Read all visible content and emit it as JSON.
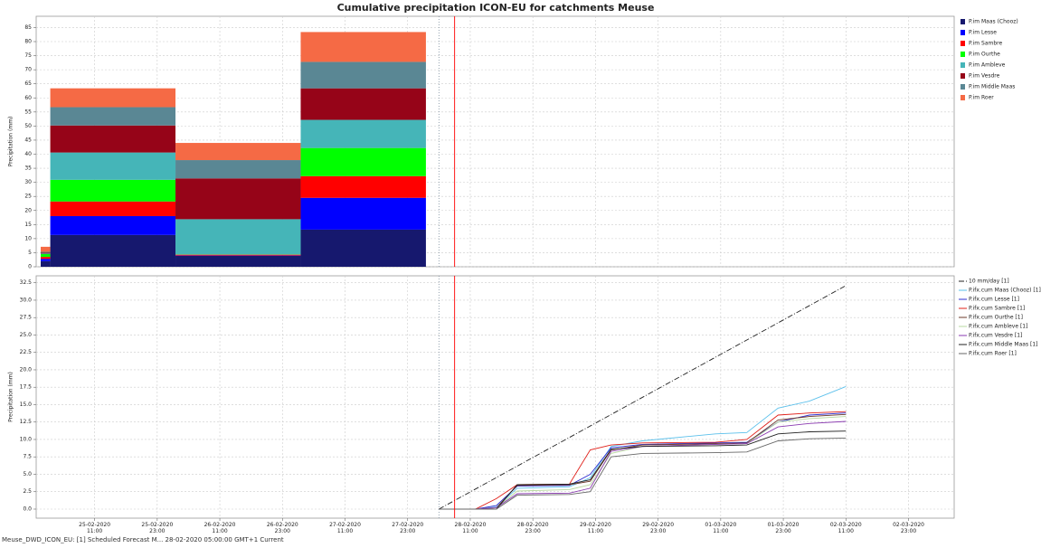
{
  "chart_data": [
    {
      "type": "histogram",
      "stacked": true,
      "title": "Cumulative precipitation ICON-EU for catchments Meuse",
      "y_label": "Precipitation (mm)",
      "xlim": [
        "2020-02-24T23:48",
        "2020-03-03T07:45"
      ],
      "ylim": [
        0,
        89
      ],
      "yticks": [
        0,
        5,
        10,
        15,
        20,
        25,
        30,
        35,
        40,
        45,
        50,
        55,
        60,
        65,
        70,
        75,
        80,
        85
      ],
      "grid": true,
      "bins": [
        "2020-02-25T00:40",
        "2020-02-25T02:30",
        "2020-02-26T02:30",
        "2020-02-27T02:30",
        "2020-02-28T02:30"
      ],
      "vlines": [
        {
          "x": "2020-02-28T05:00",
          "color": "#8a9aa8",
          "dash": "1 2"
        },
        {
          "x": "2020-02-28T08:00",
          "color": "#ff0000",
          "dash": ""
        }
      ],
      "series": [
        {
          "name": "P.im Maas (Chooz)",
          "color": "#16186e",
          "values": [
            2.0,
            11.3,
            3.9,
            13.2
          ]
        },
        {
          "name": "P.im Lesse",
          "color": "#0000ff",
          "values": [
            0.8,
            6.7,
            0.1,
            11.3
          ]
        },
        {
          "name": "P.im Sambre",
          "color": "#ff0000",
          "values": [
            0.7,
            5.2,
            0.3,
            7.7
          ]
        },
        {
          "name": "P.im Ourthe",
          "color": "#00ff00",
          "values": [
            1.0,
            7.7,
            0.1,
            10.0
          ]
        },
        {
          "name": "P.im Ambleve",
          "color": "#45b5b8",
          "values": [
            0.2,
            9.7,
            12.5,
            10.0
          ]
        },
        {
          "name": "P.im Vesdre",
          "color": "#960418",
          "values": [
            0.3,
            9.6,
            14.5,
            11.2
          ]
        },
        {
          "name": "P.im Middle Maas",
          "color": "#5a8794",
          "values": [
            0.3,
            6.5,
            6.5,
            9.4
          ]
        },
        {
          "name": "P.im Roer",
          "color": "#f56a45",
          "values": [
            1.8,
            6.7,
            6.1,
            10.6
          ]
        }
      ]
    },
    {
      "type": "line",
      "y_label": "Precipitation (mm)",
      "xlim": [
        "2020-02-24T23:48",
        "2020-03-03T07:45"
      ],
      "ylim": [
        -1.3,
        33.5
      ],
      "yticks": [
        {
          "value": 0,
          "label": "0.0"
        },
        {
          "value": 2.5,
          "label": "2.5"
        },
        {
          "value": 5,
          "label": "5.0"
        },
        {
          "value": 7.5,
          "label": "7.5"
        },
        {
          "value": 10,
          "label": "10.0"
        },
        {
          "value": 12.5,
          "label": "12.5"
        },
        {
          "value": 15,
          "label": "15.0"
        },
        {
          "value": 17.5,
          "label": "17.5"
        },
        {
          "value": 20,
          "label": "20.0"
        },
        {
          "value": 22.5,
          "label": "22.5"
        },
        {
          "value": 25,
          "label": "25.0"
        },
        {
          "value": 27.5,
          "label": "27.5"
        },
        {
          "value": 30,
          "label": "30.0"
        },
        {
          "value": 32.5,
          "label": "32.5"
        }
      ],
      "xticks": [
        {
          "value": "2020-02-25T11:00",
          "label": "25-02-2020\n11:00"
        },
        {
          "value": "2020-02-25T23:00",
          "label": "25-02-2020\n23:00"
        },
        {
          "value": "2020-02-26T11:00",
          "label": "26-02-2020\n11:00"
        },
        {
          "value": "2020-02-26T23:00",
          "label": "26-02-2020\n23:00"
        },
        {
          "value": "2020-02-27T11:00",
          "label": "27-02-2020\n11:00"
        },
        {
          "value": "2020-02-27T23:00",
          "label": "27-02-2020\n23:00"
        },
        {
          "value": "2020-02-28T11:00",
          "label": "28-02-2020\n11:00"
        },
        {
          "value": "2020-02-28T23:00",
          "label": "28-02-2020\n23:00"
        },
        {
          "value": "2020-02-29T11:00",
          "label": "29-02-2020\n11:00"
        },
        {
          "value": "2020-02-29T23:00",
          "label": "29-02-2020\n23:00"
        },
        {
          "value": "2020-03-01T11:00",
          "label": "01-03-2020\n11:00"
        },
        {
          "value": "2020-03-01T23:00",
          "label": "01-03-2020\n23:00"
        },
        {
          "value": "2020-03-02T11:00",
          "label": "02-03-2020\n11:00"
        },
        {
          "value": "2020-03-02T23:00",
          "label": "02-03-2020\n23:00"
        }
      ],
      "grid": true,
      "vlines": [
        {
          "x": "2020-02-28T05:00",
          "color": "#8a9aa8",
          "dash": "1 2"
        },
        {
          "x": "2020-02-28T08:00",
          "color": "#ff0000",
          "dash": ""
        }
      ],
      "x": [
        "2020-02-28T05:00",
        "2020-02-28T12:00",
        "2020-02-28T16:00",
        "2020-02-28T20:00",
        "2020-02-29T06:00",
        "2020-02-29T10:00",
        "2020-02-29T14:00",
        "2020-02-29T20:00",
        "2020-03-01T10:00",
        "2020-03-01T16:00",
        "2020-03-01T22:00",
        "2020-03-02T04:00",
        "2020-03-02T11:00"
      ],
      "series": [
        {
          "name": "10 mm/day [1]",
          "color": "#222222",
          "dash": "6 2 1 2",
          "x": [
            "2020-02-28T05:00",
            "2020-03-02T11:00"
          ],
          "values": [
            0,
            32.1
          ]
        },
        {
          "name": "P.ifx.cum Maas (Chooz) [1]",
          "color": "#5bc0eb",
          "values": [
            0,
            0,
            0.3,
            3.0,
            3.2,
            4.5,
            9.0,
            9.8,
            10.8,
            11.0,
            14.5,
            15.5,
            17.6
          ]
        },
        {
          "name": "P.ifx.cum Lesse [1]",
          "color": "#2d2dd0",
          "values": [
            0,
            0,
            0.5,
            3.3,
            3.4,
            5.0,
            8.8,
            9.3,
            9.5,
            9.6,
            12.5,
            13.5,
            13.8
          ]
        },
        {
          "name": "P.ifx.cum Sambre [1]",
          "color": "#e0201a",
          "values": [
            0,
            0,
            1.5,
            3.5,
            3.6,
            8.5,
            9.2,
            9.5,
            9.6,
            10.0,
            13.5,
            13.8,
            14.0
          ]
        },
        {
          "name": "P.ifx.cum Ourthe [1]",
          "color": "#6b3a2a",
          "values": [
            0,
            0,
            0.2,
            3.4,
            3.5,
            4.0,
            8.5,
            9.2,
            9.4,
            9.5,
            12.8,
            13.3,
            13.6
          ]
        },
        {
          "name": "P.ifx.cum Ambleve [1]",
          "color": "#b8d8a0",
          "values": [
            0,
            0,
            0.2,
            2.6,
            2.8,
            3.5,
            8.0,
            9.0,
            9.3,
            9.4,
            12.5,
            13.0,
            13.3
          ]
        },
        {
          "name": "P.ifx.cum Vesdre [1]",
          "color": "#8a3ab0",
          "values": [
            0,
            0,
            0.2,
            2.2,
            2.3,
            3.0,
            8.3,
            9.0,
            9.3,
            9.4,
            11.8,
            12.3,
            12.6
          ]
        },
        {
          "name": "P.ifx.cum Middle Maas [1]",
          "color": "#202020",
          "values": [
            0,
            0,
            0,
            3.5,
            3.6,
            4.2,
            8.6,
            9.0,
            9.1,
            9.2,
            10.8,
            11.1,
            11.2
          ]
        },
        {
          "name": "P.ifx.cum Roer [1]",
          "color": "#666666",
          "values": [
            0,
            0,
            0,
            2.0,
            2.1,
            2.5,
            7.5,
            8.0,
            8.1,
            8.2,
            9.8,
            10.1,
            10.2
          ]
        }
      ]
    }
  ],
  "status_bar": "Meuse_DWD_ICON_EU: [1] Scheduled Forecast M... 28-02-2020 05:00:00 GMT+1 Current"
}
